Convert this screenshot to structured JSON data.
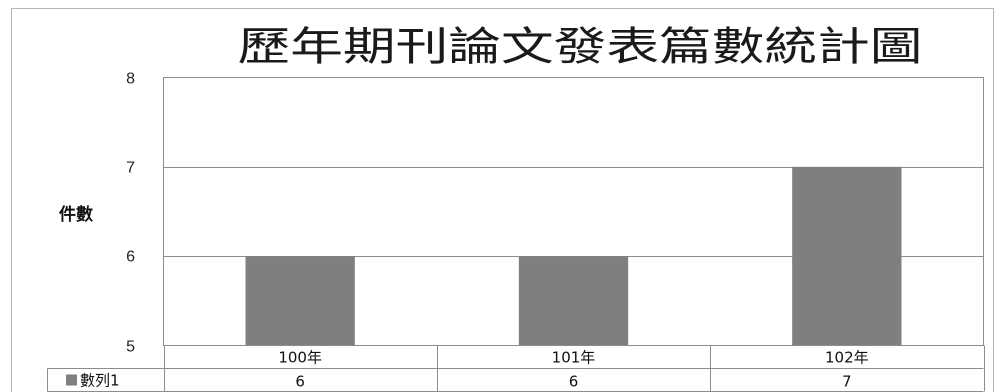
{
  "chart_data": {
    "type": "bar",
    "title": "歷年期刊論文發表篇數統計圖",
    "xlabel": "",
    "ylabel": "件數",
    "categories": [
      "100年",
      "101年",
      "102年"
    ],
    "series": [
      {
        "name": "數列1",
        "values": [
          6,
          6,
          7
        ],
        "color": "#7f7f7f"
      }
    ],
    "ylim": [
      5,
      8
    ],
    "yticks": [
      "5",
      "6",
      "7",
      "8"
    ],
    "grid": true,
    "legend": "data-table",
    "data_table": true
  }
}
